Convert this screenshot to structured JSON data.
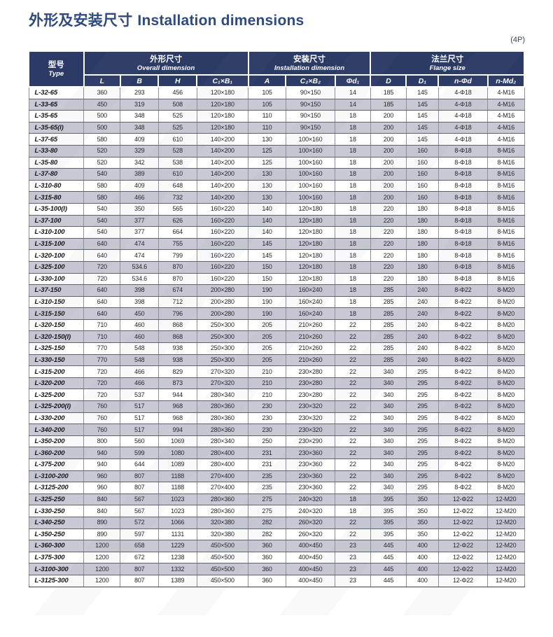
{
  "page": {
    "title_zh": "外形及安装尺寸",
    "title_en": "Installation dimensions",
    "pole_note": "(4P)"
  },
  "colors": {
    "header_bg": "#2c3a66",
    "row_stripe": "#c8c9d4",
    "title_text": "#2e4a80"
  },
  "table": {
    "type_header": {
      "zh": "型号",
      "en": "Type"
    },
    "groups": [
      {
        "zh": "外形尺寸",
        "en": "Overall dimension"
      },
      {
        "zh": "安装尺寸",
        "en": "Installation dimension"
      },
      {
        "zh": "法兰尺寸",
        "en": "Flange size"
      }
    ],
    "sub_headers": [
      "L",
      "B",
      "H",
      "C₁×B₁",
      "A",
      "C₂×B₂",
      "Φd₁",
      "D",
      "D₁",
      "n-Φd",
      "n-Md₂"
    ],
    "rows": [
      [
        "L-32-65",
        "360",
        "293",
        "456",
        "120×180",
        "105",
        "90×150",
        "14",
        "185",
        "145",
        "4-Φ18",
        "4-M16"
      ],
      [
        "L-33-65",
        "450",
        "319",
        "508",
        "120×180",
        "105",
        "90×150",
        "14",
        "185",
        "145",
        "4-Φ18",
        "4-M16"
      ],
      [
        "L-35-65",
        "500",
        "348",
        "525",
        "120×180",
        "110",
        "90×150",
        "18",
        "200",
        "145",
        "4-Φ18",
        "4-M16"
      ],
      [
        "L-35-65(I)",
        "500",
        "348",
        "525",
        "120×180",
        "110",
        "90×150",
        "18",
        "200",
        "145",
        "4-Φ18",
        "4-M16"
      ],
      [
        "L-37-65",
        "580",
        "409",
        "610",
        "140×200",
        "130",
        "100×160",
        "18",
        "200",
        "145",
        "4-Φ18",
        "4-M16"
      ],
      [
        "L-33-80",
        "520",
        "329",
        "528",
        "140×200",
        "125",
        "100×160",
        "18",
        "200",
        "160",
        "8-Φ18",
        "8-M16"
      ],
      [
        "L-35-80",
        "520",
        "342",
        "538",
        "140×200",
        "125",
        "100×160",
        "18",
        "200",
        "160",
        "8-Φ18",
        "8-M16"
      ],
      [
        "L-37-80",
        "540",
        "389",
        "610",
        "140×200",
        "130",
        "100×160",
        "18",
        "200",
        "160",
        "8-Φ18",
        "8-M16"
      ],
      [
        "L-310-80",
        "580",
        "409",
        "648",
        "140×200",
        "130",
        "100×160",
        "18",
        "200",
        "160",
        "8-Φ18",
        "8-M16"
      ],
      [
        "L-315-80",
        "580",
        "466",
        "732",
        "140×200",
        "130",
        "100×160",
        "18",
        "200",
        "160",
        "8-Φ18",
        "8-M16"
      ],
      [
        "L-35-100(I)",
        "540",
        "350",
        "565",
        "160×220",
        "140",
        "120×180",
        "18",
        "220",
        "180",
        "8-Φ18",
        "8-M16"
      ],
      [
        "L-37-100",
        "540",
        "377",
        "626",
        "160×220",
        "140",
        "120×180",
        "18",
        "220",
        "180",
        "8-Φ18",
        "8-M16"
      ],
      [
        "L-310-100",
        "540",
        "377",
        "664",
        "160×220",
        "140",
        "120×180",
        "18",
        "220",
        "180",
        "8-Φ18",
        "8-M16"
      ],
      [
        "L-315-100",
        "640",
        "474",
        "755",
        "160×220",
        "145",
        "120×180",
        "18",
        "220",
        "180",
        "8-Φ18",
        "8-M16"
      ],
      [
        "L-320-100",
        "640",
        "474",
        "799",
        "160×220",
        "145",
        "120×180",
        "18",
        "220",
        "180",
        "8-Φ18",
        "8-M16"
      ],
      [
        "L-325-100",
        "720",
        "534.6",
        "870",
        "160×220",
        "150",
        "120×180",
        "18",
        "220",
        "180",
        "8-Φ18",
        "8-M16"
      ],
      [
        "L-330-100",
        "720",
        "534.6",
        "870",
        "160×220",
        "150",
        "120×180",
        "18",
        "220",
        "180",
        "8-Φ18",
        "8-M16"
      ],
      [
        "L-37-150",
        "640",
        "398",
        "674",
        "200×280",
        "190",
        "160×240",
        "18",
        "285",
        "240",
        "8-Φ22",
        "8-M20"
      ],
      [
        "L-310-150",
        "640",
        "398",
        "712",
        "200×280",
        "190",
        "160×240",
        "18",
        "285",
        "240",
        "8-Φ22",
        "8-M20"
      ],
      [
        "L-315-150",
        "640",
        "450",
        "796",
        "200×280",
        "190",
        "160×240",
        "18",
        "285",
        "240",
        "8-Φ22",
        "8-M20"
      ],
      [
        "L-320-150",
        "710",
        "460",
        "868",
        "250×300",
        "205",
        "210×260",
        "22",
        "285",
        "240",
        "8-Φ22",
        "8-M20"
      ],
      [
        "L-320-150(I)",
        "710",
        "460",
        "868",
        "250×300",
        "205",
        "210×260",
        "22",
        "285",
        "240",
        "8-Φ22",
        "8-M20"
      ],
      [
        "L-325-150",
        "770",
        "548",
        "938",
        "250×300",
        "205",
        "210×260",
        "22",
        "285",
        "240",
        "8-Φ22",
        "8-M20"
      ],
      [
        "L-330-150",
        "770",
        "548",
        "938",
        "250×300",
        "205",
        "210×260",
        "22",
        "285",
        "240",
        "8-Φ22",
        "8-M20"
      ],
      [
        "L-315-200",
        "720",
        "466",
        "829",
        "270×320",
        "210",
        "230×280",
        "22",
        "340",
        "295",
        "8-Φ22",
        "8-M20"
      ],
      [
        "L-320-200",
        "720",
        "466",
        "873",
        "270×320",
        "210",
        "230×280",
        "22",
        "340",
        "295",
        "8-Φ22",
        "8-M20"
      ],
      [
        "L-325-200",
        "720",
        "537",
        "944",
        "280×340",
        "210",
        "230×280",
        "22",
        "340",
        "295",
        "8-Φ22",
        "8-M20"
      ],
      [
        "L-325-200(I)",
        "760",
        "517",
        "968",
        "280×360",
        "230",
        "230×320",
        "22",
        "340",
        "295",
        "8-Φ22",
        "8-M20"
      ],
      [
        "L-330-200",
        "760",
        "517",
        "968",
        "280×360",
        "230",
        "230×320",
        "22",
        "340",
        "295",
        "8-Φ22",
        "8-M20"
      ],
      [
        "L-340-200",
        "760",
        "517",
        "994",
        "280×360",
        "230",
        "230×320",
        "22",
        "340",
        "295",
        "8-Φ22",
        "8-M20"
      ],
      [
        "L-350-200",
        "800",
        "560",
        "1069",
        "280×340",
        "250",
        "230×290",
        "22",
        "340",
        "295",
        "8-Φ22",
        "8-M20"
      ],
      [
        "L-360-200",
        "940",
        "599",
        "1080",
        "280×400",
        "231",
        "230×360",
        "22",
        "340",
        "295",
        "8-Φ22",
        "8-M20"
      ],
      [
        "L-375-200",
        "940",
        "644",
        "1089",
        "280×400",
        "231",
        "230×360",
        "22",
        "340",
        "295",
        "8-Φ22",
        "8-M20"
      ],
      [
        "L-3100-200",
        "960",
        "807",
        "1188",
        "270×400",
        "235",
        "230×360",
        "22",
        "340",
        "295",
        "8-Φ22",
        "8-M20"
      ],
      [
        "L-3125-200",
        "960",
        "807",
        "1188",
        "270×400",
        "235",
        "230×360",
        "22",
        "340",
        "295",
        "8-Φ22",
        "8-M20"
      ],
      [
        "L-325-250",
        "840",
        "567",
        "1023",
        "280×360",
        "275",
        "240×320",
        "18",
        "395",
        "350",
        "12-Φ22",
        "12-M20"
      ],
      [
        "L-330-250",
        "840",
        "567",
        "1023",
        "280×360",
        "275",
        "240×320",
        "18",
        "395",
        "350",
        "12-Φ22",
        "12-M20"
      ],
      [
        "L-340-250",
        "890",
        "572",
        "1066",
        "320×380",
        "282",
        "260×320",
        "22",
        "395",
        "350",
        "12-Φ22",
        "12-M20"
      ],
      [
        "L-350-250",
        "890",
        "597",
        "1131",
        "320×380",
        "282",
        "260×320",
        "22",
        "395",
        "350",
        "12-Φ22",
        "12-M20"
      ],
      [
        "L-360-300",
        "1200",
        "658",
        "1229",
        "450×500",
        "360",
        "400×450",
        "23",
        "445",
        "400",
        "12-Φ22",
        "12-M20"
      ],
      [
        "L-375-300",
        "1200",
        "672",
        "1238",
        "450×500",
        "360",
        "400×450",
        "23",
        "445",
        "400",
        "12-Φ22",
        "12-M20"
      ],
      [
        "L-3100-300",
        "1200",
        "807",
        "1332",
        "450×500",
        "360",
        "400×450",
        "23",
        "445",
        "400",
        "12-Φ22",
        "12-M20"
      ],
      [
        "L-3125-300",
        "1200",
        "807",
        "1389",
        "450×500",
        "360",
        "400×450",
        "23",
        "445",
        "400",
        "12-Φ22",
        "12-M20"
      ]
    ]
  }
}
